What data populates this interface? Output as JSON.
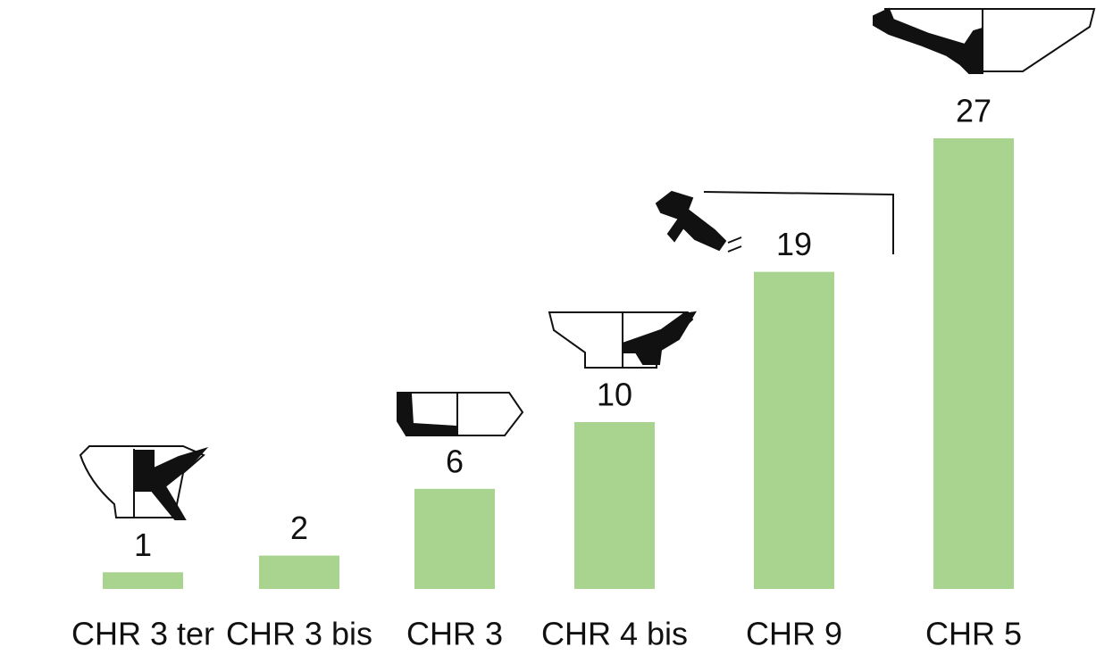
{
  "chart_data": {
    "type": "bar",
    "categories": [
      "CHR 3 ter",
      "CHR 3 bis",
      "CHR 3",
      "CHR 4 bis",
      "CHR 9",
      "CHR 5"
    ],
    "values": [
      1,
      2,
      6,
      10,
      19,
      27
    ],
    "color": "#a8d490"
  }
}
